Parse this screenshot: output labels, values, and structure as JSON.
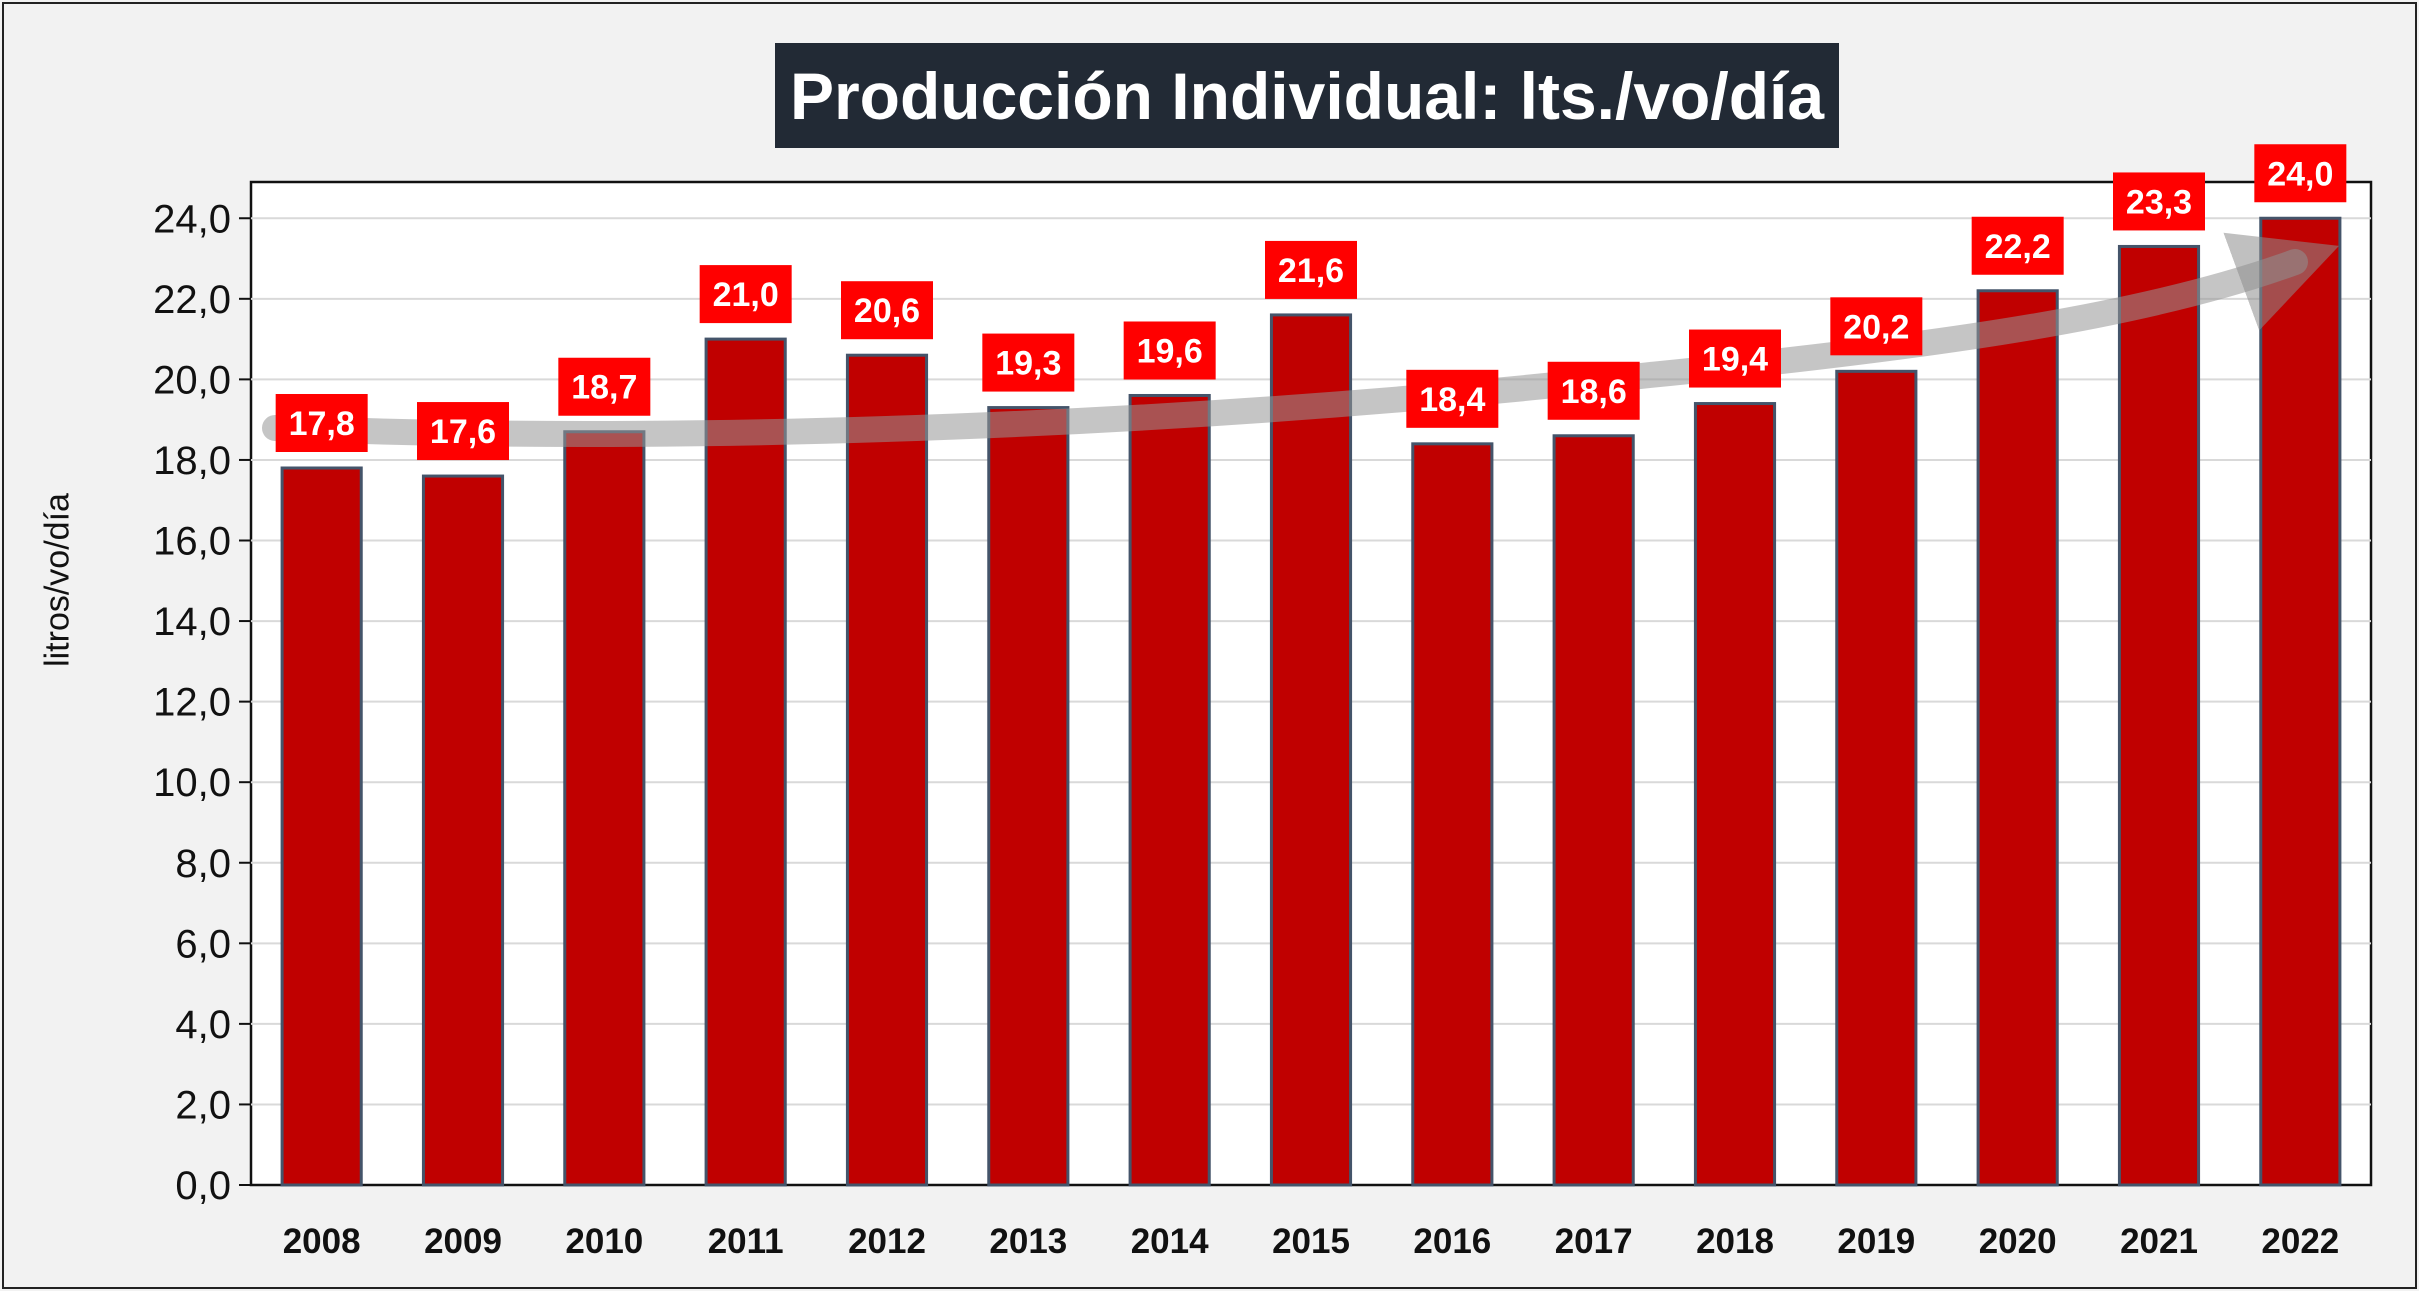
{
  "chart_data": {
    "type": "bar",
    "title": "Producción Individual: lts./vo/día",
    "ylabel": "litros/vo/día",
    "xlabel": "",
    "categories": [
      "2008",
      "2009",
      "2010",
      "2011",
      "2012",
      "2013",
      "2014",
      "2015",
      "2016",
      "2017",
      "2018",
      "2019",
      "2020",
      "2021",
      "2022"
    ],
    "values": [
      17.8,
      17.6,
      18.7,
      21.0,
      20.6,
      19.3,
      19.6,
      21.6,
      18.4,
      18.6,
      19.4,
      20.2,
      22.2,
      23.3,
      24.0
    ],
    "value_labels": [
      "17,8",
      "17,6",
      "18,7",
      "21,0",
      "20,6",
      "19,3",
      "19,6",
      "21,6",
      "18,4",
      "18,6",
      "19,4",
      "20,2",
      "22,2",
      "23,3",
      "24,0"
    ],
    "yticks": [
      0,
      2,
      4,
      6,
      8,
      10,
      12,
      14,
      16,
      18,
      20,
      22,
      24
    ],
    "ytick_labels": [
      "0,0",
      "2,0",
      "4,0",
      "6,0",
      "8,0",
      "10,0",
      "12,0",
      "14,0",
      "16,0",
      "18,0",
      "20,0",
      "22,0",
      "24,0"
    ],
    "ylim": [
      0,
      24.9
    ],
    "grid": true,
    "trend_arrow": true,
    "colors": {
      "bar": "#c00000",
      "bar_outline": "#44546a",
      "label_bg": "#ff0000",
      "label_text": "#ffffff",
      "title_bg": "#222a35",
      "plot_bg": "#ffffff",
      "grid": "#d9d9d9",
      "arrow": "#a6a6a6"
    }
  }
}
